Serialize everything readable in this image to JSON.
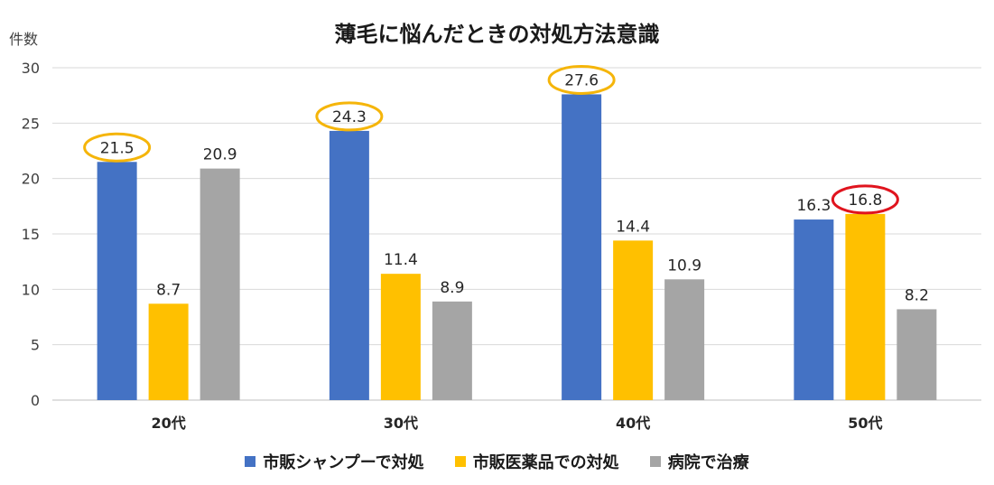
{
  "chart_data": {
    "type": "bar",
    "title": "薄毛に悩んだときの対処方法意識",
    "ylabel": "件数",
    "xlabel": "",
    "ylim": [
      0,
      30
    ],
    "yticks": [
      0,
      5,
      10,
      15,
      20,
      25,
      30
    ],
    "categories": [
      "20代",
      "30代",
      "40代",
      "50代"
    ],
    "series": [
      {
        "name": "市販シャンプーで対処",
        "color": "#4472C4",
        "values": [
          21.5,
          24.3,
          27.6,
          16.3
        ]
      },
      {
        "name": "市販医薬品での対処",
        "color": "#FFC000",
        "values": [
          8.7,
          11.4,
          14.4,
          16.8
        ]
      },
      {
        "name": "病院で治療",
        "color": "#A5A5A5",
        "values": [
          20.9,
          8.9,
          10.9,
          8.2
        ]
      }
    ],
    "highlights": [
      {
        "series": 0,
        "category": 0,
        "color": "#F5B50A"
      },
      {
        "series": 0,
        "category": 1,
        "color": "#F5B50A"
      },
      {
        "series": 0,
        "category": 2,
        "color": "#F5B50A"
      },
      {
        "series": 1,
        "category": 3,
        "color": "#E0141E"
      }
    ],
    "grid": true,
    "legend": "bottom"
  }
}
